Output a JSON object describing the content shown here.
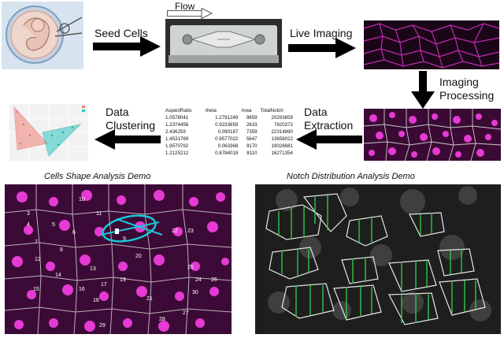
{
  "steps": {
    "seed_cells": "Seed Cells",
    "flow": "Flow",
    "live_imaging": "Live Imaging",
    "imaging_processing_1": "Imaging",
    "imaging_processing_2": "Processing",
    "data_extraction_1": "Data",
    "data_extraction_2": "Extraction",
    "data_clustering_1": "Data",
    "data_clustering_2": "Clustering"
  },
  "captions": {
    "shape_demo": "Cells Shape Analysis Demo",
    "notch_demo": "Notch Distribution Analysis Demo"
  },
  "table": {
    "headers": [
      "AspectRatio",
      "theta",
      "Area",
      "TotalNotch"
    ],
    "rows": [
      [
        "1.0578041",
        "1.2791249",
        "9859",
        "20293859"
      ],
      [
        "1.2374456",
        "0.9233659",
        "2633",
        "7820372"
      ],
      [
        "2.436259",
        "0.090187",
        "7359",
        "22314890"
      ],
      [
        "1.4531769",
        "0.9577022",
        "5647",
        "13658022"
      ],
      [
        "1.9570792",
        "0.063368",
        "9170",
        "19028681"
      ],
      [
        "1.2125212",
        "0.8784018",
        "8110",
        "16271354"
      ]
    ]
  },
  "cell_labels": [
    "10",
    "11",
    "3",
    "4",
    "5",
    "6",
    "7",
    "8",
    "9",
    "12",
    "13",
    "14",
    "15",
    "16",
    "17",
    "18",
    "19",
    "20",
    "21",
    "22",
    "23",
    "24",
    "25",
    "26",
    "27",
    "28",
    "29",
    "30"
  ],
  "colors": {
    "magenta": "#e020d0",
    "cyan": "#19c6d6",
    "green": "#2ec84a",
    "cluster_red": "#f08078",
    "cluster_teal": "#2bc4c0"
  }
}
